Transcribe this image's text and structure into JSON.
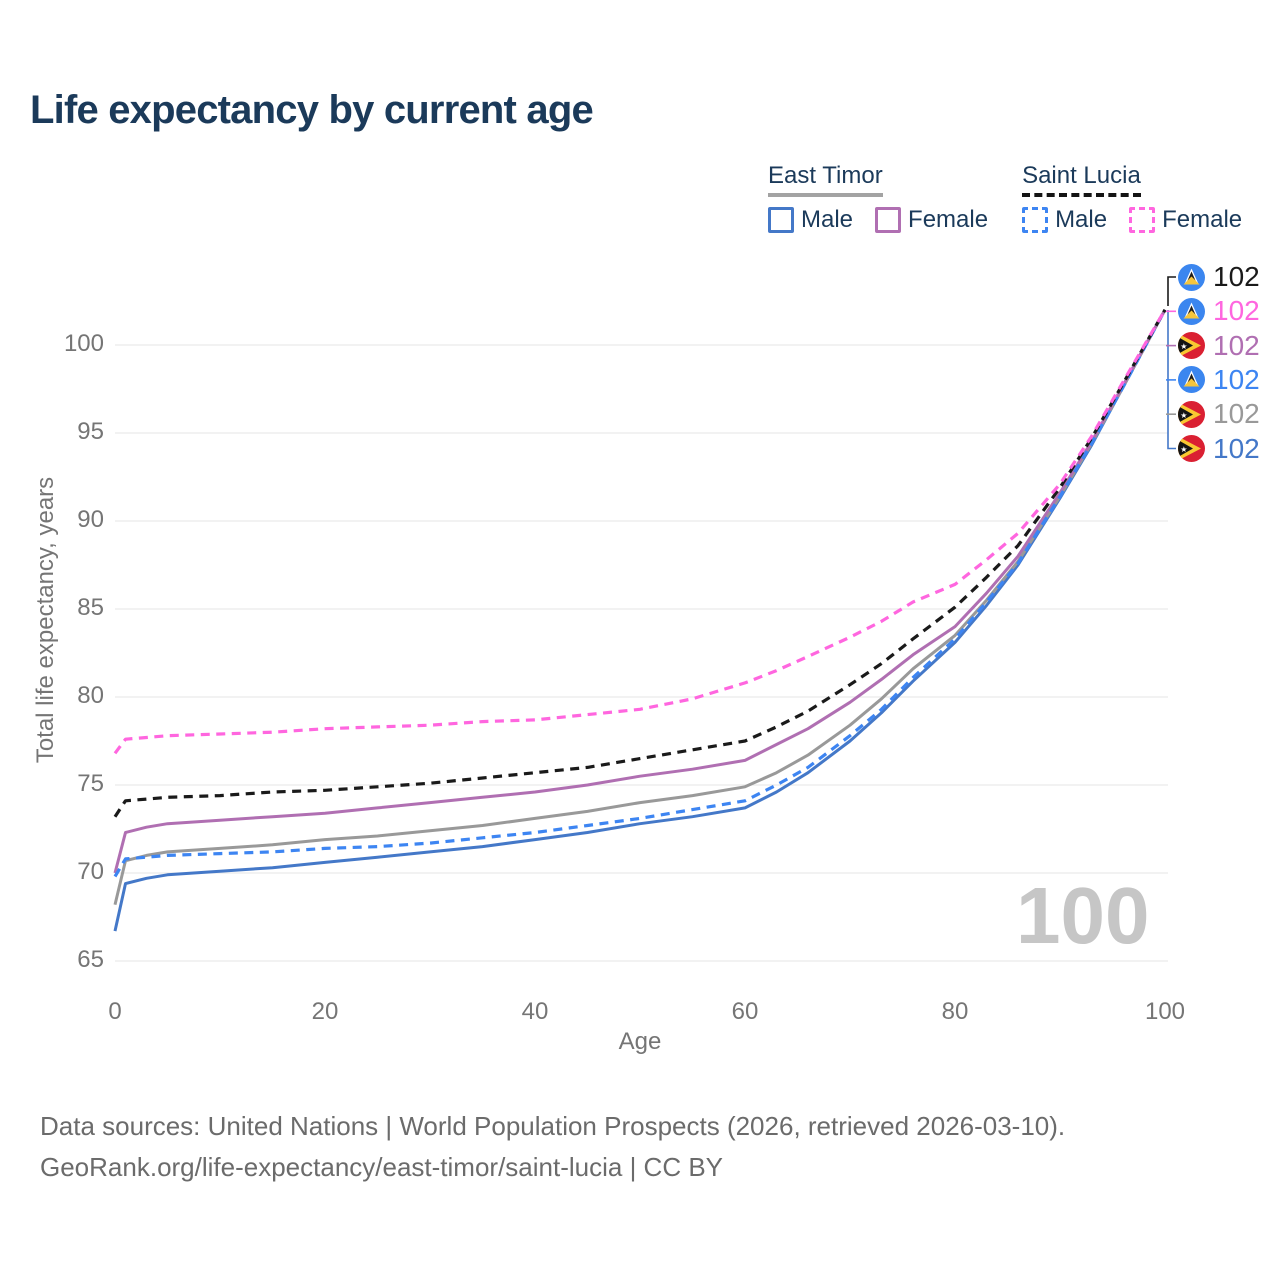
{
  "page": {
    "title": "Life expectancy by current age",
    "age_counter": "100",
    "footer": {
      "line1": "Data sources: United Nations | World Population Prospects (2026, retrieved 2026-03-10).",
      "line2": "GeoRank.org/life-expectancy/east-timor/saint-lucia | CC BY"
    }
  },
  "legend": {
    "groups": [
      {
        "title": "East Timor",
        "line_style": "solid",
        "line_color": "#a3a3a3",
        "items": [
          {
            "label": "Male",
            "color": "#4478c8",
            "dashed": false
          },
          {
            "label": "Female",
            "color": "#b06fb2",
            "dashed": false
          }
        ]
      },
      {
        "title": "Saint Lucia",
        "line_style": "dashed",
        "line_color": "#141414",
        "items": [
          {
            "label": "Male",
            "color": "#3d85f2",
            "dashed": true
          },
          {
            "label": "Female",
            "color": "#ff66df",
            "dashed": true
          }
        ]
      }
    ]
  },
  "chart_data": {
    "type": "line",
    "title": "Life expectancy by current age",
    "xlabel": "Age",
    "ylabel": "Total life expectancy, years",
    "xlim": [
      0,
      100
    ],
    "ylim": [
      63.5,
      103
    ],
    "xticks": [
      0,
      20,
      40,
      60,
      80,
      100
    ],
    "yticks": [
      65,
      70,
      75,
      80,
      85,
      90,
      95,
      100
    ],
    "grid": "horizontal",
    "legend_position": "top-right",
    "x": [
      0,
      1,
      3,
      5,
      10,
      15,
      20,
      25,
      30,
      35,
      40,
      45,
      50,
      55,
      60,
      63,
      66,
      70,
      73,
      76,
      80,
      83,
      86,
      90,
      93,
      96,
      100
    ],
    "series": [
      {
        "name": "East Timor Male",
        "country": "East Timor",
        "sex": "Male",
        "flag": "east-timor",
        "color": "#4478c8",
        "dashed": false,
        "end_label": "102",
        "label_row": 5,
        "values": [
          66.7,
          69.4,
          69.7,
          69.9,
          70.1,
          70.3,
          70.6,
          70.9,
          71.2,
          71.5,
          71.9,
          72.3,
          72.8,
          73.2,
          73.7,
          74.6,
          75.7,
          77.5,
          79.1,
          80.9,
          83.1,
          85.2,
          87.5,
          91.3,
          94.3,
          97.6,
          102
        ]
      },
      {
        "name": "East Timor Total",
        "country": "East Timor",
        "sex": "Both sexes",
        "flag": "east-timor",
        "color": "#999999",
        "dashed": false,
        "end_label": "102",
        "label_row": 4,
        "values": [
          68.2,
          70.7,
          71.0,
          71.2,
          71.4,
          71.6,
          71.9,
          72.1,
          72.4,
          72.7,
          73.1,
          73.5,
          74.0,
          74.4,
          74.9,
          75.7,
          76.7,
          78.4,
          79.9,
          81.6,
          83.5,
          85.5,
          87.7,
          91.4,
          94.4,
          97.6,
          102
        ]
      },
      {
        "name": "East Timor Female",
        "country": "East Timor",
        "sex": "Female",
        "flag": "east-timor",
        "color": "#b06fb2",
        "dashed": false,
        "end_label": "102",
        "label_row": 2,
        "values": [
          70.0,
          72.3,
          72.6,
          72.8,
          73.0,
          73.2,
          73.4,
          73.7,
          74.0,
          74.3,
          74.6,
          75.0,
          75.5,
          75.9,
          76.4,
          77.3,
          78.2,
          79.7,
          81.0,
          82.4,
          84.0,
          85.9,
          88.0,
          91.6,
          94.5,
          97.7,
          102
        ]
      },
      {
        "name": "Saint Lucia Male",
        "country": "Saint Lucia",
        "sex": "Male",
        "flag": "saint-lucia",
        "color": "#3d85f2",
        "dashed": true,
        "end_label": "102",
        "label_row": 3,
        "values": [
          69.8,
          70.8,
          70.9,
          71.0,
          71.1,
          71.2,
          71.4,
          71.5,
          71.7,
          72.0,
          72.3,
          72.7,
          73.1,
          73.6,
          74.1,
          75.0,
          76.0,
          77.8,
          79.3,
          81.1,
          83.3,
          85.4,
          87.6,
          91.4,
          94.4,
          97.6,
          102
        ]
      },
      {
        "name": "Saint Lucia Total",
        "country": "Saint Lucia",
        "sex": "Both sexes",
        "flag": "saint-lucia",
        "color": "#1a1a1a",
        "dashed": true,
        "end_label": "102",
        "label_row": 0,
        "values": [
          73.2,
          74.1,
          74.2,
          74.3,
          74.4,
          74.6,
          74.7,
          74.9,
          75.1,
          75.4,
          75.7,
          76.0,
          76.5,
          77.0,
          77.5,
          78.3,
          79.2,
          80.7,
          81.9,
          83.3,
          85.1,
          86.8,
          88.6,
          91.9,
          94.7,
          97.8,
          102
        ]
      },
      {
        "name": "Saint Lucia Female",
        "country": "Saint Lucia",
        "sex": "Female",
        "flag": "saint-lucia",
        "color": "#ff66df",
        "dashed": true,
        "end_label": "102",
        "label_row": 1,
        "values": [
          76.8,
          77.6,
          77.7,
          77.8,
          77.9,
          78.0,
          78.2,
          78.3,
          78.4,
          78.6,
          78.7,
          79.0,
          79.3,
          79.9,
          80.8,
          81.5,
          82.3,
          83.4,
          84.3,
          85.4,
          86.4,
          87.8,
          89.3,
          92.1,
          94.8,
          97.9,
          102
        ]
      }
    ]
  }
}
